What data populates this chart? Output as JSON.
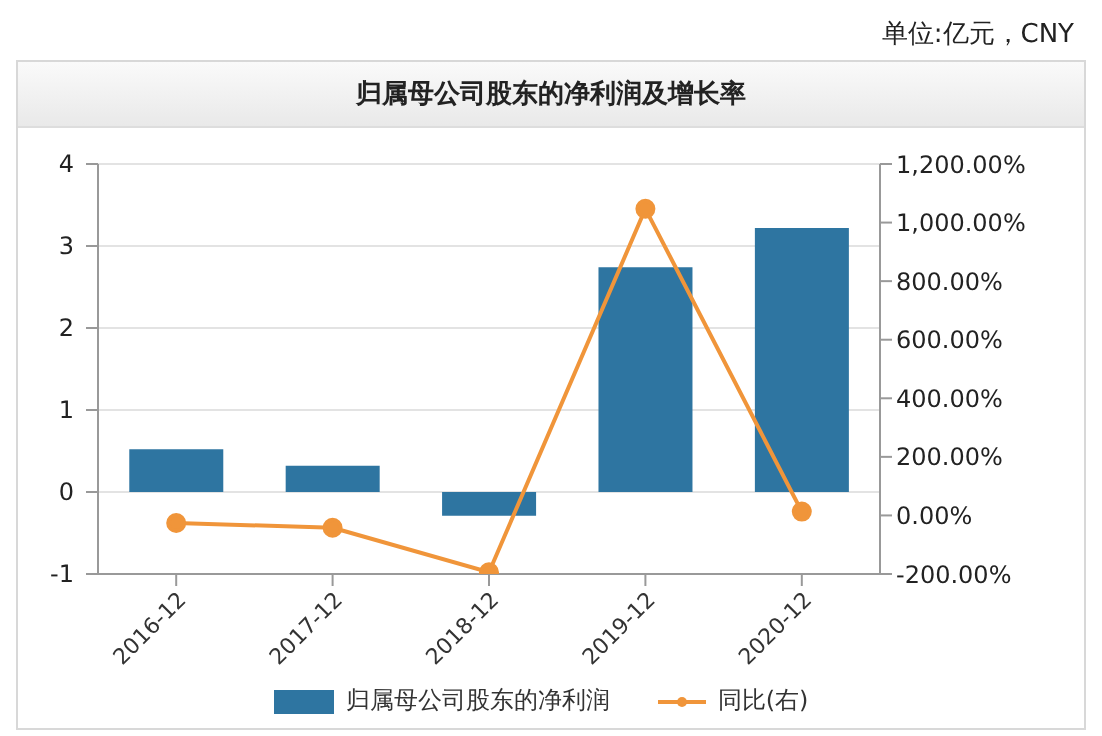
{
  "chart_data": {
    "type": "bar",
    "title": "归属母公司股东的净利润及增长率",
    "annotations": [
      "单位:亿元，CNY"
    ],
    "categories": [
      "2016-12",
      "2017-12",
      "2018-12",
      "2019-12",
      "2020-12"
    ],
    "series": [
      {
        "name": "归属母公司股东的净利润",
        "color": "#2e75a1",
        "values": [
          0.52,
          0.32,
          -0.29,
          2.74,
          3.22
        ]
      },
      {
        "name": "同比(右)",
        "type": "line",
        "axis": "y2",
        "color": "#f0953a",
        "marker": "circle",
        "values": [
          -26,
          -42,
          -194,
          1047,
          13
        ]
      }
    ],
    "ylim": [
      -1,
      4
    ],
    "yticks": [
      -1,
      0,
      1,
      2,
      3,
      4
    ],
    "y2lim": [
      -200,
      1200
    ],
    "y2ticks": [
      {
        "value": -200,
        "label": "-200.00%"
      },
      {
        "value": 0,
        "label": "0.00%"
      },
      {
        "value": 200,
        "label": "200.00%"
      },
      {
        "value": 400,
        "label": "400.00%"
      },
      {
        "value": 600,
        "label": "600.00%"
      },
      {
        "value": 800,
        "label": "800.00%"
      },
      {
        "value": 1000,
        "label": "1,000.00%"
      },
      {
        "value": 1200,
        "label": "1,200.00%"
      }
    ],
    "grid": "y",
    "legend": "bottom"
  }
}
